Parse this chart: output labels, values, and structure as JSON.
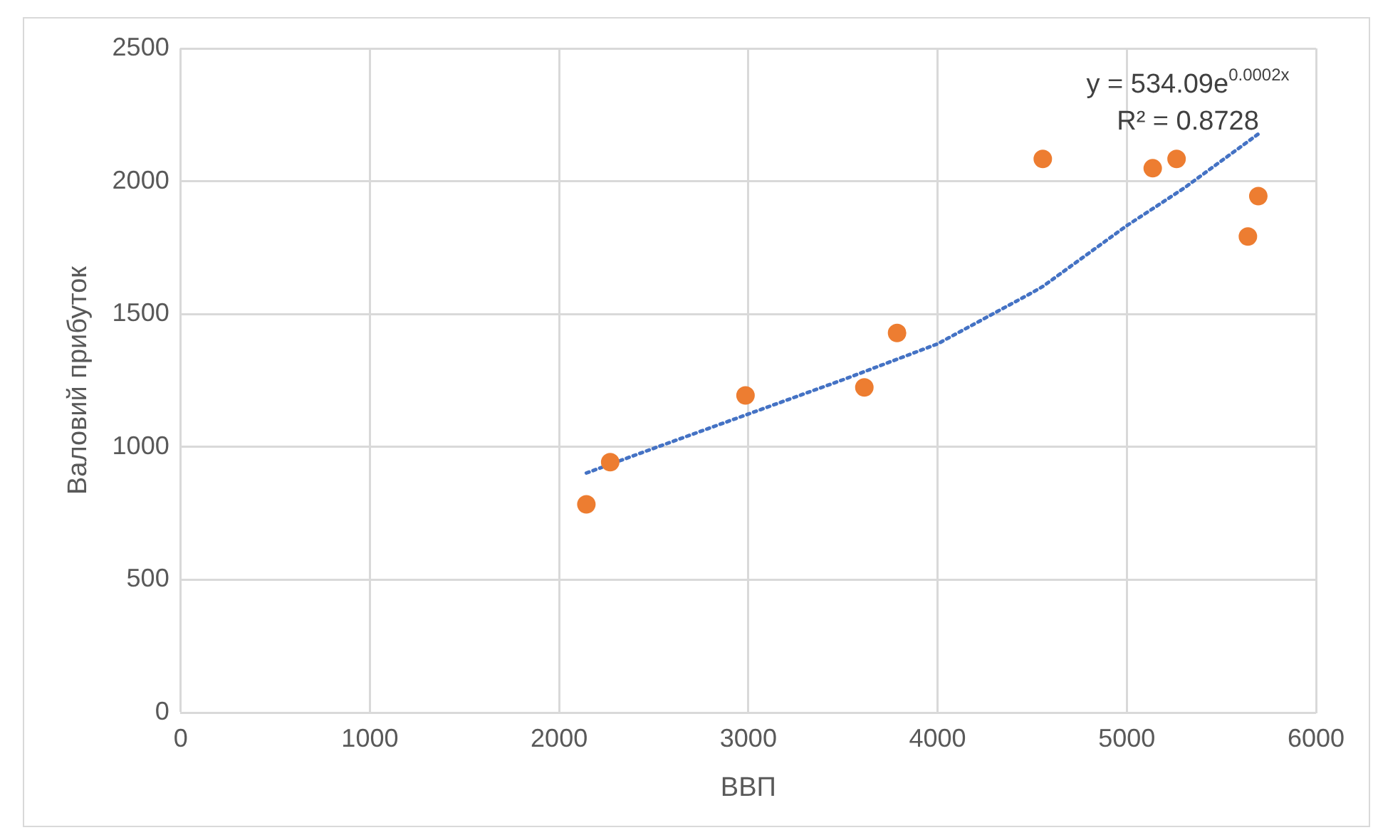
{
  "chart_data": {
    "type": "scatter",
    "xlabel": "ВВП",
    "ylabel": "Валовий прибуток",
    "xlim": [
      0,
      6000
    ],
    "xticks": [
      0,
      1000,
      2000,
      3000,
      4000,
      5000,
      6000
    ],
    "ylim": [
      0,
      2500
    ],
    "yticks": [
      0,
      500,
      1000,
      1500,
      2000,
      2500
    ],
    "grid": true,
    "legend": false,
    "marker": "circle",
    "annotations": [
      "y = 534.09e$^{0.0002x}$",
      "R² = 0.8728"
    ],
    "series": [
      {
        "type": "scatter",
        "color": "#ed7d31",
        "x": [
          2144,
          2270,
          2985,
          3613,
          3786,
          4556,
          5137,
          5263,
          5640,
          5695
        ],
        "values": [
          784,
          943,
          1194,
          1224,
          1429,
          2084,
          2049,
          2084,
          1792,
          1944
        ]
      },
      {
        "type": "line",
        "color": "#4472c4",
        "line_style": "dotted",
        "marker": "none",
        "x": [
          2144,
          2500,
          3000,
          3500,
          4000,
          4500,
          4556,
          5000,
          5300,
          5695
        ],
        "values": [
          902,
          995,
          1124,
          1253,
          1388,
          1581,
          1604,
          1833,
          1973,
          2178
        ]
      }
    ]
  }
}
